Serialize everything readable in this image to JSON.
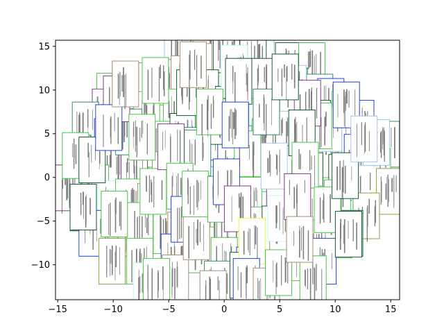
{
  "chart_data": {
    "type": "scatter",
    "title": "",
    "xlabel": "",
    "ylabel": "",
    "xlim": [
      -15.2,
      15.8
    ],
    "ylim": [
      -14,
      15.7
    ],
    "grid": false,
    "marker": "thumbnail-image",
    "x_ticks": [
      -15,
      -10,
      -5,
      0,
      5,
      10,
      15
    ],
    "y_ticks": [
      -10,
      -5,
      0,
      5,
      10,
      15
    ],
    "x_tick_labels": [
      "−15",
      "−10",
      "−5",
      "0",
      "5",
      "10",
      "15"
    ],
    "y_tick_labels": [
      "−10",
      "−5",
      "0",
      "5",
      "10",
      "15"
    ],
    "frame_colors": [
      "#0b5e33",
      "#45c545",
      "#1f3fd4",
      "#86338a",
      "#a98b6e",
      "#9fc4e8",
      "#e6f24a",
      "#bff6f6",
      "#2f8a6a",
      "#8aa13a"
    ],
    "points": [
      {
        "x": 1.6,
        "y": 15.0,
        "c": 2
      },
      {
        "x": 3.3,
        "y": 13.9,
        "c": 5
      },
      {
        "x": -4.2,
        "y": 14.1,
        "c": 5
      },
      {
        "x": -2.3,
        "y": 14.0,
        "c": 7
      },
      {
        "x": -0.6,
        "y": 14.2,
        "c": 6
      },
      {
        "x": 0.2,
        "y": 14.6,
        "c": 0
      },
      {
        "x": 2.6,
        "y": 13.8,
        "c": 0
      },
      {
        "x": 5.8,
        "y": 12.8,
        "c": 0
      },
      {
        "x": 7.9,
        "y": 12.8,
        "c": 1
      },
      {
        "x": -2.3,
        "y": 12.7,
        "c": 4
      },
      {
        "x": -7.7,
        "y": 10.5,
        "c": 4
      },
      {
        "x": -8.9,
        "y": 10.5,
        "c": 1
      },
      {
        "x": -10.3,
        "y": 9.3,
        "c": 1
      },
      {
        "x": -4.9,
        "y": 10.9,
        "c": 1
      },
      {
        "x": -3.6,
        "y": 11.3,
        "c": 4
      },
      {
        "x": -1.7,
        "y": 9.7,
        "c": 0
      },
      {
        "x": 1.3,
        "y": 10.5,
        "c": 0
      },
      {
        "x": 2.6,
        "y": 10.3,
        "c": 1
      },
      {
        "x": 3.6,
        "y": 11.0,
        "c": 0
      },
      {
        "x": 6.3,
        "y": 9.9,
        "c": 0
      },
      {
        "x": 8.6,
        "y": 9.2,
        "c": 8
      },
      {
        "x": 9.6,
        "y": 8.7,
        "c": 2
      },
      {
        "x": 10.9,
        "y": 7.2,
        "c": 1
      },
      {
        "x": 12.3,
        "y": 6.2,
        "c": 2
      },
      {
        "x": 14.6,
        "y": 3.8,
        "c": 8
      },
      {
        "x": -10.7,
        "y": 7.5,
        "c": 3
      },
      {
        "x": -12.5,
        "y": 6.0,
        "c": 8
      },
      {
        "x": -7.0,
        "y": 7.2,
        "c": 1
      },
      {
        "x": -4.3,
        "y": 7.5,
        "c": 1
      },
      {
        "x": 0.4,
        "y": 7.8,
        "c": 0
      },
      {
        "x": 3.4,
        "y": 6.4,
        "c": 1
      },
      {
        "x": 7.0,
        "y": 8.0,
        "c": 2
      },
      {
        "x": 8.4,
        "y": 6.2,
        "c": 0
      },
      {
        "x": 10.8,
        "y": 4.6,
        "c": 1
      },
      {
        "x": -13.2,
        "y": 2.2,
        "c": 0
      },
      {
        "x": -10.5,
        "y": 4.1,
        "c": 2
      },
      {
        "x": -9.8,
        "y": 1.4,
        "c": 2
      },
      {
        "x": -8.0,
        "y": 3.3,
        "c": 1
      },
      {
        "x": -5.8,
        "y": 3.8,
        "c": 1
      },
      {
        "x": -3.7,
        "y": 4.7,
        "c": 0
      },
      {
        "x": -1.4,
        "y": 4.6,
        "c": 0
      },
      {
        "x": 1.3,
        "y": 3.3,
        "c": 8
      },
      {
        "x": 3.7,
        "y": 4.1,
        "c": 1
      },
      {
        "x": 5.8,
        "y": 5.0,
        "c": 0
      },
      {
        "x": 7.6,
        "y": 3.9,
        "c": 3
      },
      {
        "x": 9.4,
        "y": 2.6,
        "c": 1
      },
      {
        "x": 12.0,
        "y": 2.3,
        "c": 2
      },
      {
        "x": 13.8,
        "y": 0.7,
        "c": 1
      },
      {
        "x": -14.1,
        "y": -1.2,
        "c": 3
      },
      {
        "x": -11.6,
        "y": -1.2,
        "c": 1
      },
      {
        "x": -8.1,
        "y": 0.3,
        "c": 3
      },
      {
        "x": -5.3,
        "y": 0.3,
        "c": 1
      },
      {
        "x": -2.5,
        "y": 3.1,
        "c": 8
      },
      {
        "x": -2.4,
        "y": 0.4,
        "c": 5
      },
      {
        "x": 0.6,
        "y": 1.2,
        "c": 2
      },
      {
        "x": 2.9,
        "y": 1.0,
        "c": 1
      },
      {
        "x": 5.3,
        "y": 1.0,
        "c": 3
      },
      {
        "x": 7.7,
        "y": 0.2,
        "c": 0
      },
      {
        "x": 10.6,
        "y": 0.0,
        "c": 0
      },
      {
        "x": 12.7,
        "y": -1.3,
        "c": 7
      },
      {
        "x": 14.9,
        "y": -1.6,
        "c": 9
      },
      {
        "x": -12.7,
        "y": -3.5,
        "c": 0
      },
      {
        "x": -10.2,
        "y": -3.0,
        "c": 7
      },
      {
        "x": -8.6,
        "y": -2.8,
        "c": 1
      },
      {
        "x": -6.6,
        "y": -3.3,
        "c": 4
      },
      {
        "x": -4.7,
        "y": -3.1,
        "c": 5
      },
      {
        "x": -2.7,
        "y": -2.0,
        "c": 2
      },
      {
        "x": 0.6,
        "y": -4.2,
        "c": 3
      },
      {
        "x": 2.2,
        "y": -2.6,
        "c": 1
      },
      {
        "x": 5.0,
        "y": -3.6,
        "c": 3
      },
      {
        "x": 8.3,
        "y": -3.6,
        "c": 1
      },
      {
        "x": 10.2,
        "y": -2.9,
        "c": 1
      },
      {
        "x": 12.8,
        "y": -4.4,
        "c": 9
      },
      {
        "x": -11.9,
        "y": -6.4,
        "c": 2
      },
      {
        "x": -9.3,
        "y": -6.4,
        "c": 9
      },
      {
        "x": -7.6,
        "y": -5.5,
        "c": 1
      },
      {
        "x": -5.2,
        "y": -6.1,
        "c": 1
      },
      {
        "x": -3.9,
        "y": -6.6,
        "c": 4
      },
      {
        "x": -0.9,
        "y": -6.2,
        "c": 2
      },
      {
        "x": 1.6,
        "y": -6.8,
        "c": 6
      },
      {
        "x": 3.3,
        "y": -6.0,
        "c": 1
      },
      {
        "x": 5.3,
        "y": -7.6,
        "c": 7
      },
      {
        "x": 7.0,
        "y": -7.5,
        "c": 1
      },
      {
        "x": 8.1,
        "y": -7.5,
        "c": 4
      },
      {
        "x": 10.3,
        "y": -6.6,
        "c": 1
      },
      {
        "x": 11.3,
        "y": -6.4,
        "c": 0
      },
      {
        "x": -10.1,
        "y": -9.6,
        "c": 9
      },
      {
        "x": -7.6,
        "y": -9.6,
        "c": 1
      },
      {
        "x": -4.5,
        "y": -9.1,
        "c": 2
      },
      {
        "x": -2.1,
        "y": -8.3,
        "c": 1
      },
      {
        "x": 0.0,
        "y": -9.5,
        "c": 1
      },
      {
        "x": 2.3,
        "y": -10.6,
        "c": 2
      },
      {
        "x": 4.2,
        "y": -10.9,
        "c": 2
      },
      {
        "x": 6.1,
        "y": -9.2,
        "c": 9
      },
      {
        "x": 8.9,
        "y": -9.6,
        "c": 2
      },
      {
        "x": -7.0,
        "y": -12.4,
        "c": 7
      },
      {
        "x": -4.4,
        "y": -11.5,
        "c": 4
      },
      {
        "x": -0.6,
        "y": -12.2,
        "c": 8
      },
      {
        "x": 3.2,
        "y": -12.5,
        "c": 4
      },
      {
        "x": 8.0,
        "y": -11.6,
        "c": 1
      },
      {
        "x": -13.4,
        "y": 2.5,
        "c": 1
      },
      {
        "x": -9.9,
        "y": -4.2,
        "c": 1
      },
      {
        "x": 6.2,
        "y": 10.2,
        "c": 5
      },
      {
        "x": -8.6,
        "y": 5.2,
        "c": 8
      },
      {
        "x": 9.4,
        "y": 5.6,
        "c": 5
      },
      {
        "x": 0.9,
        "y": 12.5,
        "c": 7
      },
      {
        "x": -6.1,
        "y": -11.9,
        "c": 1
      },
      {
        "x": 1.7,
        "y": -11.2,
        "c": 0
      },
      {
        "x": -6.2,
        "y": 11.1,
        "c": 1
      },
      {
        "x": 4.6,
        "y": -5.9,
        "c": 0
      },
      {
        "x": 13.7,
        "y": 4.0,
        "c": 5
      },
      {
        "x": -3.4,
        "y": 0.5,
        "c": 2
      },
      {
        "x": 2.1,
        "y": 2.7,
        "c": 1
      },
      {
        "x": -1.3,
        "y": -1.4,
        "c": 1
      },
      {
        "x": -9.7,
        "y": 9.0,
        "c": 3
      },
      {
        "x": 8.5,
        "y": 5.9,
        "c": 1
      },
      {
        "x": -0.6,
        "y": 6.4,
        "c": 0
      },
      {
        "x": 3.8,
        "y": 7.5,
        "c": 8
      },
      {
        "x": 11.0,
        "y": 8.3,
        "c": 2
      },
      {
        "x": 7.5,
        "y": 8.5,
        "c": 3
      },
      {
        "x": -12.7,
        "y": -3.4,
        "c": 0
      },
      {
        "x": -11.9,
        "y": 2.0,
        "c": 0
      },
      {
        "x": -10.4,
        "y": 5.7,
        "c": 2
      },
      {
        "x": -8.9,
        "y": 10.7,
        "c": 4
      },
      {
        "x": -6.4,
        "y": -1.6,
        "c": 1
      },
      {
        "x": -7.4,
        "y": 4.6,
        "c": 1
      },
      {
        "x": -4.8,
        "y": 3.5,
        "c": 3
      },
      {
        "x": -3.1,
        "y": 9.7,
        "c": 0
      },
      {
        "x": -2.8,
        "y": 12.9,
        "c": 4
      },
      {
        "x": -2.4,
        "y": 2.8,
        "c": 8
      },
      {
        "x": -4.0,
        "y": -1.0,
        "c": 1
      },
      {
        "x": -3.6,
        "y": -4.8,
        "c": 2
      },
      {
        "x": -2.5,
        "y": -6.8,
        "c": 4
      },
      {
        "x": -2.6,
        "y": -1.9,
        "c": 1
      },
      {
        "x": -0.3,
        "y": -2.5,
        "c": 1
      },
      {
        "x": -1.3,
        "y": 7.5,
        "c": 1
      },
      {
        "x": 1.3,
        "y": 11.0,
        "c": 0
      },
      {
        "x": 1.0,
        "y": 6.0,
        "c": 2
      },
      {
        "x": 0.2,
        "y": -0.5,
        "c": 2
      },
      {
        "x": 1.2,
        "y": -3.6,
        "c": 3
      },
      {
        "x": 2.5,
        "y": -7.3,
        "c": 6
      },
      {
        "x": 2.0,
        "y": -11.9,
        "c": 2
      },
      {
        "x": -1.0,
        "y": -13.3,
        "c": 4
      },
      {
        "x": 3.8,
        "y": -13.0,
        "c": 4
      },
      {
        "x": 4.5,
        "y": 1.3,
        "c": 5
      },
      {
        "x": 5.1,
        "y": -4.7,
        "c": 7
      },
      {
        "x": 4.9,
        "y": -10.9,
        "c": 1
      },
      {
        "x": 5.5,
        "y": 11.5,
        "c": 0
      },
      {
        "x": 7.0,
        "y": 5.1,
        "c": 0
      },
      {
        "x": 7.3,
        "y": 1.4,
        "c": 1
      },
      {
        "x": 6.6,
        "y": -2.2,
        "c": 3
      },
      {
        "x": 6.8,
        "y": -7.1,
        "c": 4
      },
      {
        "x": 9.3,
        "y": -3.7,
        "c": 1
      },
      {
        "x": 10.9,
        "y": 0.2,
        "c": 0
      },
      {
        "x": 11.2,
        "y": -6.5,
        "c": 0
      },
      {
        "x": 12.6,
        "y": 4.4,
        "c": 5
      }
    ]
  }
}
